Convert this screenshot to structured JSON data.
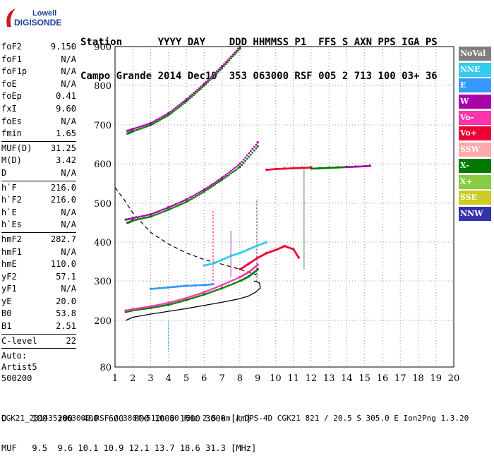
{
  "logo": {
    "line1": "Lowell",
    "line2": "DIGISONDE"
  },
  "header": {
    "row1": "Station      YYYY DAY    DDD HHMMSS P1  FFS S AXN PPS IGA PS",
    "row2": "Campo Grande 2014 Dec19  353 063000 RSF 005 2 713 100 03+ 36"
  },
  "params_groups": [
    [
      {
        "k": "foF2",
        "v": "9.150"
      },
      {
        "k": "foF1",
        "v": "N/A"
      },
      {
        "k": "foF1p",
        "v": "N/A"
      },
      {
        "k": "foE",
        "v": "N/A"
      },
      {
        "k": "foEp",
        "v": "0.41"
      },
      {
        "k": "fxI",
        "v": "9.60"
      },
      {
        "k": "foEs",
        "v": "N/A"
      },
      {
        "k": "fmin",
        "v": "1.65"
      }
    ],
    [
      {
        "k": "MUF(D)",
        "v": "31.25"
      },
      {
        "k": "M(D)",
        "v": "3.42"
      },
      {
        "k": "D",
        "v": "N/A"
      }
    ],
    [
      {
        "k": "h`F",
        "v": "216.0"
      },
      {
        "k": "h`F2",
        "v": "216.0"
      },
      {
        "k": "h`E",
        "v": "N/A"
      },
      {
        "k": "h`Es",
        "v": "N/A"
      }
    ],
    [
      {
        "k": "hmF2",
        "v": "282.7"
      },
      {
        "k": "hmF1",
        "v": "N/A"
      },
      {
        "k": "hmE",
        "v": "110.0"
      },
      {
        "k": "yF2",
        "v": "57.1"
      },
      {
        "k": "yF1",
        "v": "N/A"
      },
      {
        "k": "yE",
        "v": "20.0"
      },
      {
        "k": "B0",
        "v": "53.8"
      },
      {
        "k": "B1",
        "v": "2.51"
      }
    ],
    [
      {
        "k": "C-level",
        "v": "22"
      }
    ]
  ],
  "auto": [
    "Auto:",
    "Artist5",
    "500200"
  ],
  "legend": [
    {
      "label": "NoVal",
      "color": "#7f7f7f"
    },
    {
      "label": "NNE",
      "color": "#33ccee"
    },
    {
      "label": "E",
      "color": "#3399ff"
    },
    {
      "label": "W",
      "color": "#aa00aa"
    },
    {
      "label": "Vo-",
      "color": "#ff33aa"
    },
    {
      "label": "Vo+",
      "color": "#ee0033"
    },
    {
      "label": "SSW",
      "color": "#ffaaaa"
    },
    {
      "label": "X-",
      "color": "#007a00"
    },
    {
      "label": "X+",
      "color": "#88cc44"
    },
    {
      "label": "SSE",
      "color": "#cccc22"
    },
    {
      "label": "NNW",
      "color": "#3333aa"
    }
  ],
  "footer": {
    "d_row": "D     100  200  400  600  800 1000 1500 3000 [km]",
    "muf_row": "MUF   9.5  9.6 10.1 10.9 12.1 13.7 18.6 31.3 [MHz]",
    "file_row": "CGK21_2014353063000.RSF / 380fx512h 50 kHz 2.5 km / DPS-4D CGK21 821 / 20.5 S 305.0 E Ion2Png 1.3.20"
  },
  "chart_data": {
    "type": "scatter",
    "xlim": [
      1,
      20
    ],
    "ylim": [
      80,
      900
    ],
    "x_ticks": [
      1,
      2,
      3,
      4,
      5,
      6,
      7,
      8,
      9,
      10,
      11,
      12,
      13,
      14,
      15,
      16,
      17,
      18,
      19,
      20
    ],
    "y_ticks": [
      80,
      200,
      300,
      400,
      500,
      600,
      700,
      800,
      900
    ],
    "grid": "dotted",
    "series": [
      {
        "color_key": "X-",
        "x": [
          1.6,
          2,
          3,
          4,
          5,
          6,
          7,
          8,
          8.5,
          9
        ],
        "y": [
          222,
          226,
          232,
          240,
          252,
          266,
          282,
          300,
          312,
          330
        ]
      },
      {
        "color_key": "Vo-",
        "x": [
          1.6,
          2,
          3,
          4,
          5,
          6,
          7,
          8,
          8.5,
          9
        ],
        "y": [
          225,
          229,
          236,
          245,
          257,
          272,
          290,
          310,
          323,
          342
        ]
      },
      {
        "color_key": "E",
        "x": [
          3.0,
          3.5,
          4,
          4.5,
          5,
          5.5,
          6,
          6.5
        ],
        "y": [
          280,
          282,
          284,
          286,
          288,
          289,
          290,
          292
        ]
      },
      {
        "color_key": "W",
        "x": [
          1.6,
          2,
          3,
          4,
          5,
          6,
          7,
          8,
          9
        ],
        "y": [
          458,
          462,
          472,
          490,
          510,
          535,
          565,
          600,
          655
        ]
      },
      {
        "color_key": "X-",
        "x": [
          1.7,
          2,
          3,
          4,
          5,
          6,
          7,
          8,
          9
        ],
        "y": [
          450,
          456,
          466,
          484,
          504,
          530,
          560,
          592,
          645
        ]
      },
      {
        "color_key": "W",
        "x": [
          1.7,
          2,
          3,
          4,
          5,
          6,
          7,
          8
        ],
        "y": [
          685,
          690,
          705,
          730,
          765,
          805,
          850,
          900
        ]
      },
      {
        "color_key": "X-",
        "x": [
          1.7,
          2,
          3,
          4,
          5,
          6,
          7,
          8
        ],
        "y": [
          678,
          684,
          700,
          725,
          760,
          800,
          845,
          895
        ]
      },
      {
        "color_key": "Vo+",
        "x": [
          9.5,
          10,
          10.5,
          11,
          11.5,
          12
        ],
        "y": [
          585,
          587,
          588,
          589,
          590,
          591
        ]
      },
      {
        "color_key": "X-",
        "x": [
          12,
          12.5,
          13,
          13.5,
          14
        ],
        "y": [
          588,
          589,
          590,
          591,
          592
        ]
      },
      {
        "color_key": "W",
        "x": [
          14,
          14.5,
          15,
          15.3
        ],
        "y": [
          592,
          593,
          594,
          595
        ]
      },
      {
        "color_key": "Vo+",
        "x": [
          8,
          8.5,
          9,
          9.5,
          10,
          10.5,
          11,
          11.3
        ],
        "y": [
          330,
          345,
          360,
          372,
          380,
          390,
          382,
          360
        ]
      },
      {
        "color_key": "NNE",
        "x": [
          6,
          6.5,
          7,
          7.5,
          8,
          8.5,
          9,
          9.5
        ],
        "y": [
          340,
          345,
          355,
          365,
          372,
          382,
          392,
          400
        ]
      }
    ],
    "profile": {
      "x": [
        1.6,
        2,
        3,
        4,
        5,
        6,
        7,
        8,
        8.5,
        8.9,
        9.15,
        9.1,
        8.8
      ],
      "y": [
        200,
        208,
        216,
        223,
        230,
        238,
        246,
        255,
        262,
        272,
        282,
        295,
        300
      ]
    },
    "dashed": {
      "x": [
        1,
        1.5,
        2,
        2.5,
        3,
        4,
        5,
        6,
        7,
        8,
        8.5,
        9
      ],
      "y": [
        540,
        510,
        475,
        450,
        425,
        395,
        372,
        355,
        343,
        330,
        322,
        315
      ]
    },
    "verticals": [
      {
        "x": 8.95,
        "y": [
          300,
          510
        ],
        "color_key": "NoVal"
      },
      {
        "x": 11.6,
        "y": [
          330,
          590
        ],
        "color_key": "X-"
      },
      {
        "x": 6.5,
        "y": [
          300,
          480
        ],
        "color_key": "Vo-"
      },
      {
        "x": 7.5,
        "y": [
          310,
          430
        ],
        "color_key": "W"
      },
      {
        "x": 4,
        "y": [
          120,
          200
        ],
        "color_key": "NNE"
      }
    ]
  }
}
